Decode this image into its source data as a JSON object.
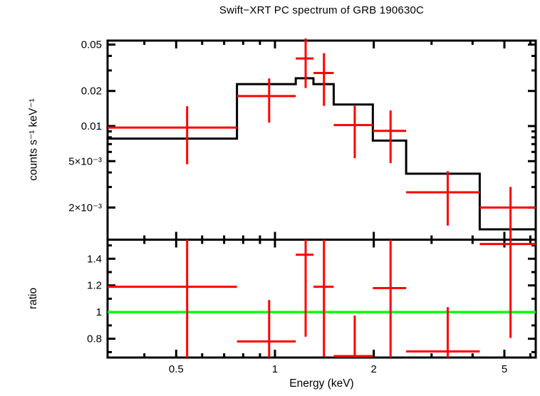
{
  "title": "Swift−XRT PC spectrum of GRB 190630C",
  "chart_data": [
    {
      "type": "scatter",
      "subtype": "counts-spectrum-errorbars-with-stepped-model",
      "title": "Swift−XRT PC spectrum of GRB 190630C",
      "xlabel": "Energy (keV)",
      "ylabel": "counts s⁻¹ keV⁻¹",
      "xscale": "log",
      "yscale": "log",
      "xlim": [
        0.309,
        6.23
      ],
      "ylim": [
        0.00106,
        0.0541
      ],
      "grid": false,
      "legend": "none",
      "colors": {
        "data": "#ff0000",
        "model": "#000000",
        "frame": "#000000",
        "background": "#ffffff"
      },
      "xticks": [
        {
          "v": 0.5,
          "label": "0.5"
        },
        {
          "v": 1,
          "label": "1"
        },
        {
          "v": 2,
          "label": "2"
        },
        {
          "v": 5,
          "label": "5"
        }
      ],
      "xticks_minor": [
        0.4,
        0.5,
        0.6,
        0.7,
        0.8,
        0.9,
        1,
        2,
        3,
        4,
        5,
        6
      ],
      "yticks": [
        {
          "v": 0.05,
          "label": "0.05"
        },
        {
          "v": 0.02,
          "label": "0.02"
        },
        {
          "v": 0.01,
          "label": "0.01"
        },
        {
          "v": 0.005,
          "label": "5×10⁻³"
        },
        {
          "v": 0.002,
          "label": "2×10⁻³"
        }
      ],
      "yticks_minor": [
        0.002,
        0.003,
        0.004,
        0.005,
        0.006,
        0.007,
        0.008,
        0.009,
        0.01,
        0.02,
        0.03,
        0.04,
        0.05
      ],
      "points": [
        {
          "x": 0.54,
          "xlo": 0.309,
          "xhi": 0.766,
          "y": 0.0097,
          "ylo": 0.0047,
          "yhi": 0.0148
        },
        {
          "x": 0.96,
          "xlo": 0.766,
          "xhi": 1.157,
          "y": 0.0181,
          "ylo": 0.0107,
          "yhi": 0.0256
        },
        {
          "x": 1.24,
          "xlo": 1.157,
          "xhi": 1.31,
          "y": 0.038,
          "ylo": 0.0212,
          "yhi": 0.0565
        },
        {
          "x": 1.41,
          "xlo": 1.31,
          "xhi": 1.51,
          "y": 0.0285,
          "ylo": 0.0149,
          "yhi": 0.0422
        },
        {
          "x": 1.75,
          "xlo": 1.51,
          "xhi": 1.987,
          "y": 0.0102,
          "ylo": 0.0053,
          "yhi": 0.0149
        },
        {
          "x": 2.25,
          "xlo": 1.987,
          "xhi": 2.51,
          "y": 0.0091,
          "ylo": 0.0048,
          "yhi": 0.0136
        },
        {
          "x": 3.36,
          "xlo": 2.51,
          "xhi": 4.206,
          "y": 0.0027,
          "ylo": 0.0014,
          "yhi": 0.0041
        },
        {
          "x": 5.22,
          "xlo": 4.206,
          "xhi": 6.23,
          "y": 0.002,
          "ylo": 0.00107,
          "yhi": 0.003
        }
      ],
      "model_steps": [
        {
          "xlo": 0.309,
          "xhi": 0.766,
          "y": 0.0078
        },
        {
          "xlo": 0.766,
          "xhi": 1.157,
          "y": 0.0229
        },
        {
          "xlo": 1.157,
          "xhi": 1.31,
          "y": 0.0257
        },
        {
          "xlo": 1.31,
          "xhi": 1.51,
          "y": 0.0229
        },
        {
          "xlo": 1.51,
          "xhi": 1.987,
          "y": 0.0153
        },
        {
          "xlo": 1.987,
          "xhi": 2.51,
          "y": 0.0075
        },
        {
          "xlo": 2.51,
          "xhi": 4.206,
          "y": 0.0039
        },
        {
          "xlo": 4.206,
          "xhi": 6.23,
          "y": 0.0013
        }
      ]
    },
    {
      "type": "scatter",
      "subtype": "data-to-model-ratio-errorbars",
      "xlabel": "Energy (keV)",
      "ylabel": "ratio",
      "xscale": "log",
      "yscale": "linear",
      "xlim": [
        0.309,
        6.23
      ],
      "ylim": [
        0.659,
        1.543
      ],
      "grid": false,
      "legend": "none",
      "colors": {
        "data": "#ff0000",
        "reference": "#00ff00",
        "frame": "#000000",
        "background": "#ffffff"
      },
      "reference_line": {
        "y": 1,
        "color": "#00ff00"
      },
      "yticks": [
        {
          "v": 1.4,
          "label": "1.4"
        },
        {
          "v": 1.2,
          "label": "1.2"
        },
        {
          "v": 1,
          "label": "1"
        },
        {
          "v": 0.8,
          "label": "0.8"
        }
      ],
      "yticks_minor": [
        0.7,
        0.8,
        0.9,
        1.0,
        1.1,
        1.2,
        1.3,
        1.4,
        1.5
      ],
      "points": [
        {
          "x": 0.54,
          "xlo": 0.309,
          "xhi": 0.766,
          "y": 1.19,
          "ylo": 0.659,
          "yhi": 1.543
        },
        {
          "x": 0.96,
          "xlo": 0.766,
          "xhi": 1.157,
          "y": 0.78,
          "ylo": 0.659,
          "yhi": 1.09
        },
        {
          "x": 1.24,
          "xlo": 1.157,
          "xhi": 1.31,
          "y": 1.43,
          "ylo": 0.815,
          "yhi": 1.543
        },
        {
          "x": 1.41,
          "xlo": 1.31,
          "xhi": 1.51,
          "y": 1.19,
          "ylo": 0.664,
          "yhi": 1.543
        },
        {
          "x": 1.75,
          "xlo": 1.51,
          "xhi": 1.987,
          "y": 0.67,
          "ylo": 0.659,
          "yhi": 0.974
        },
        {
          "x": 2.25,
          "xlo": 1.987,
          "xhi": 2.51,
          "y": 1.18,
          "ylo": 0.659,
          "yhi": 1.543
        },
        {
          "x": 3.36,
          "xlo": 2.51,
          "xhi": 4.206,
          "y": 0.705,
          "ylo": 0.659,
          "yhi": 1.037
        },
        {
          "x": 5.22,
          "xlo": 4.206,
          "xhi": 6.23,
          "y": 1.51,
          "ylo": 0.806,
          "yhi": 1.543
        }
      ]
    }
  ]
}
